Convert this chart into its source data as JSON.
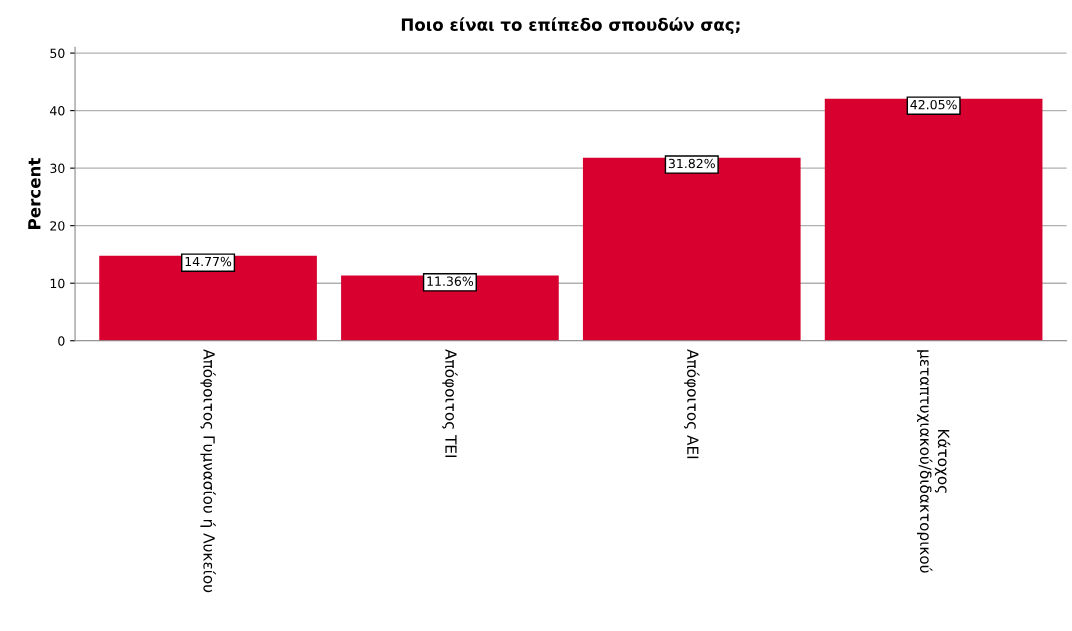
{
  "chart_data": {
    "type": "bar",
    "title": "Ποιο είναι το επίπεδο σπουδών σας;",
    "ylabel": "Percent",
    "categories": [
      "Απόφοιτος Γυμνασίου ή Λυκείου",
      "Απόφοιτος ΤΕΙ",
      "Απόφοιτος ΑΕΙ",
      "Κάτοχος\nμεταπτυχιακού/διδακτορικού"
    ],
    "values": [
      14.77,
      11.36,
      31.82,
      42.05
    ],
    "value_labels": [
      "14.77%",
      "11.36%",
      "31.82%",
      "42.05%"
    ],
    "color": "#d7002f",
    "ylim": [
      0,
      51
    ],
    "yticks": [
      0,
      10,
      20,
      30,
      40,
      50
    ],
    "grid": "y"
  }
}
